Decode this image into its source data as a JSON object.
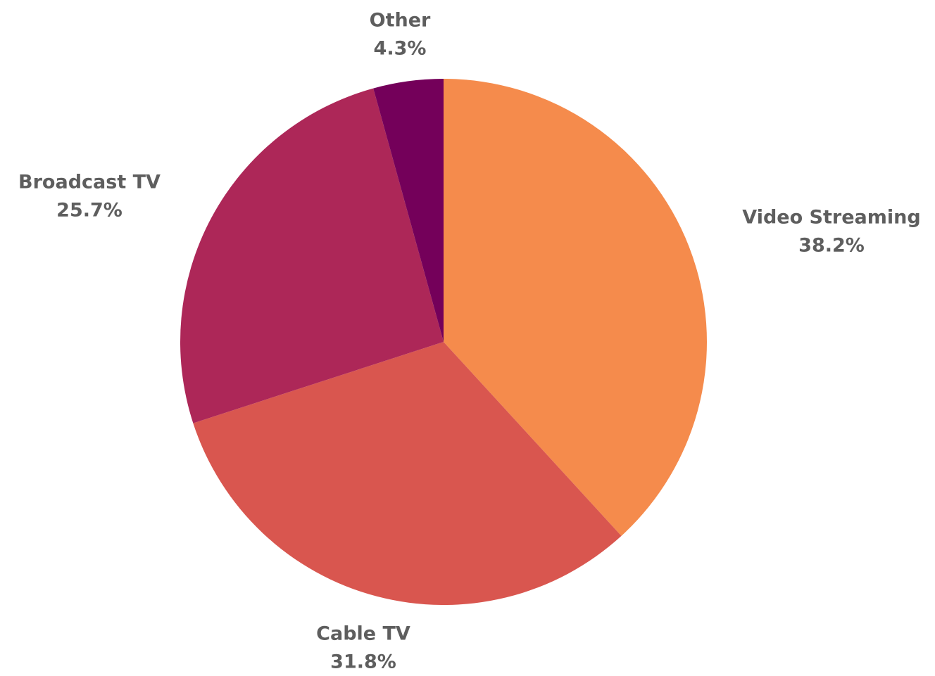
{
  "chart_data": {
    "type": "pie",
    "start_angle_deg": 0,
    "direction": "clockwise",
    "slices": [
      {
        "label": "Video Streaming",
        "value": 38.2,
        "value_label": "38.2%",
        "color": "#F58B4C"
      },
      {
        "label": "Cable TV",
        "value": 31.8,
        "value_label": "31.8%",
        "color": "#D9564F"
      },
      {
        "label": "Broadcast TV",
        "value": 25.7,
        "value_label": "25.7%",
        "color": "#AD2758"
      },
      {
        "label": "Other",
        "value": 4.3,
        "value_label": "4.3%",
        "color": "#74005A"
      }
    ],
    "legend": "none",
    "labels": "outside"
  }
}
